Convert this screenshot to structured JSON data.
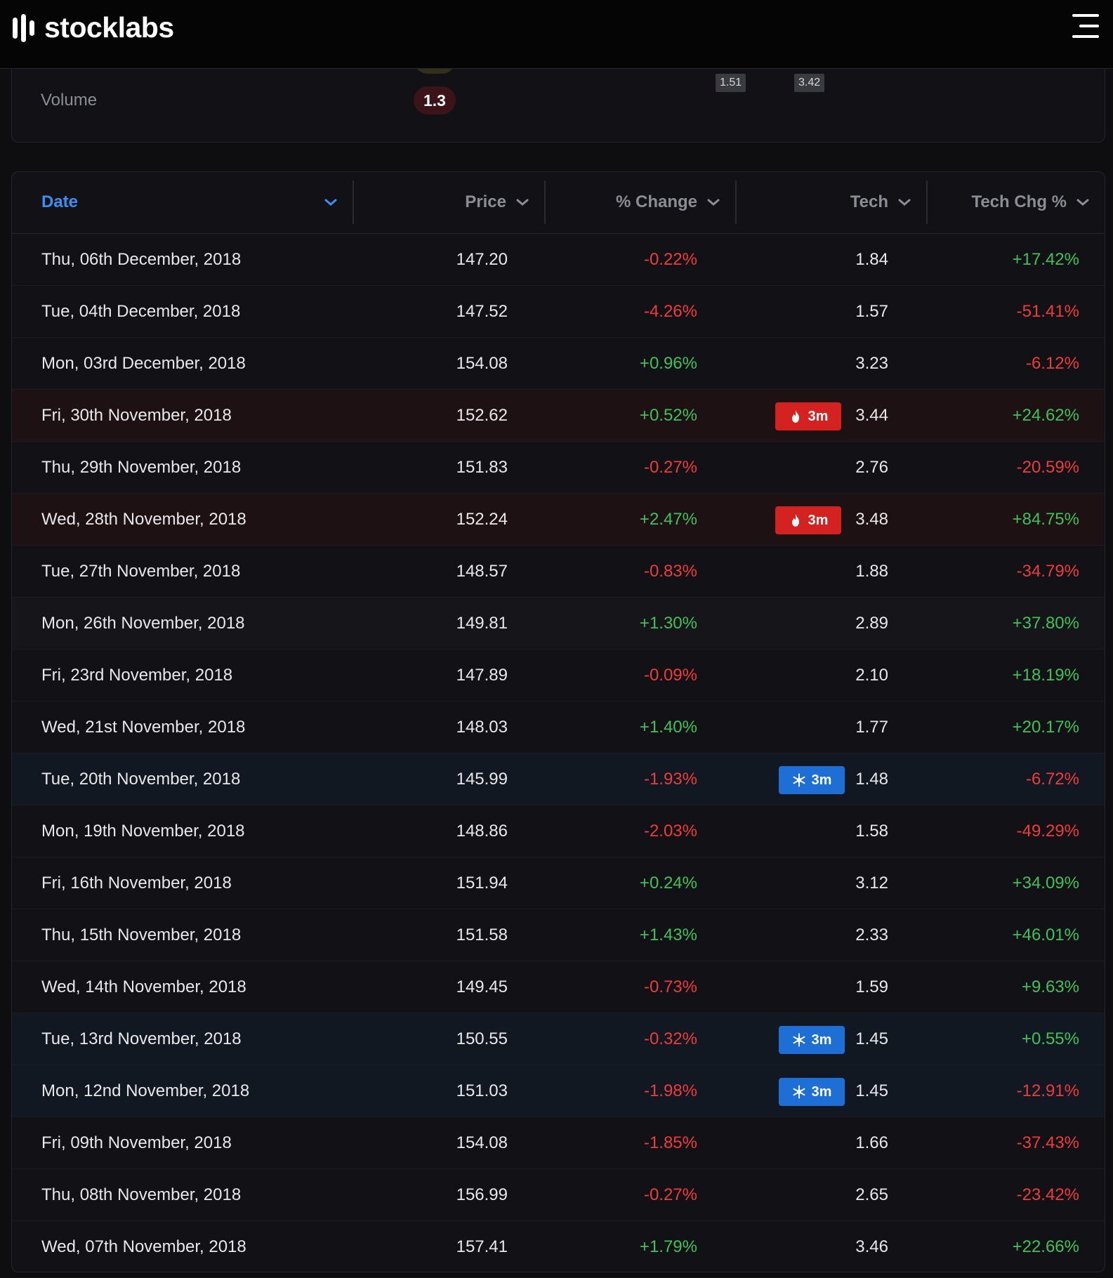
{
  "header": {
    "logo_text": "stocklabs"
  },
  "summary": {
    "volume_label": "Volume",
    "volume_value": "1.3",
    "ticks": [
      "1.51",
      "3.42"
    ]
  },
  "table": {
    "columns": {
      "date": "Date",
      "price": "Price",
      "change": "% Change",
      "tech": "Tech",
      "tech_chg": "Tech Chg %"
    },
    "rows": [
      {
        "date": "Thu, 06th December, 2018",
        "price": "147.20",
        "change": "-0.22%",
        "tech": "1.84",
        "tech_chg": "+17.42%",
        "badge": ""
      },
      {
        "date": "Tue, 04th December, 2018",
        "price": "147.52",
        "change": "-4.26%",
        "tech": "1.57",
        "tech_chg": "-51.41%",
        "badge": ""
      },
      {
        "date": "Mon, 03rd December, 2018",
        "price": "154.08",
        "change": "+0.96%",
        "tech": "3.23",
        "tech_chg": "-6.12%",
        "badge": ""
      },
      {
        "date": "Fri, 30th November, 2018",
        "price": "152.62",
        "change": "+0.52%",
        "tech": "3.44",
        "tech_chg": "+24.62%",
        "badge": "hot",
        "badge_label": "3m"
      },
      {
        "date": "Thu, 29th November, 2018",
        "price": "151.83",
        "change": "-0.27%",
        "tech": "2.76",
        "tech_chg": "-20.59%",
        "badge": ""
      },
      {
        "date": "Wed, 28th November, 2018",
        "price": "152.24",
        "change": "+2.47%",
        "tech": "3.48",
        "tech_chg": "+84.75%",
        "badge": "hot",
        "badge_label": "3m"
      },
      {
        "date": "Tue, 27th November, 2018",
        "price": "148.57",
        "change": "-0.83%",
        "tech": "1.88",
        "tech_chg": "-34.79%",
        "badge": ""
      },
      {
        "date": "Mon, 26th November, 2018",
        "price": "149.81",
        "change": "+1.30%",
        "tech": "2.89",
        "tech_chg": "+37.80%",
        "badge": "",
        "alt": true
      },
      {
        "date": "Fri, 23rd November, 2018",
        "price": "147.89",
        "change": "-0.09%",
        "tech": "2.10",
        "tech_chg": "+18.19%",
        "badge": ""
      },
      {
        "date": "Wed, 21st November, 2018",
        "price": "148.03",
        "change": "+1.40%",
        "tech": "1.77",
        "tech_chg": "+20.17%",
        "badge": ""
      },
      {
        "date": "Tue, 20th November, 2018",
        "price": "145.99",
        "change": "-1.93%",
        "tech": "1.48",
        "tech_chg": "-6.72%",
        "badge": "cold",
        "badge_label": "3m"
      },
      {
        "date": "Mon, 19th November, 2018",
        "price": "148.86",
        "change": "-2.03%",
        "tech": "1.58",
        "tech_chg": "-49.29%",
        "badge": ""
      },
      {
        "date": "Fri, 16th November, 2018",
        "price": "151.94",
        "change": "+0.24%",
        "tech": "3.12",
        "tech_chg": "+34.09%",
        "badge": ""
      },
      {
        "date": "Thu, 15th November, 2018",
        "price": "151.58",
        "change": "+1.43%",
        "tech": "2.33",
        "tech_chg": "+46.01%",
        "badge": ""
      },
      {
        "date": "Wed, 14th November, 2018",
        "price": "149.45",
        "change": "-0.73%",
        "tech": "1.59",
        "tech_chg": "+9.63%",
        "badge": ""
      },
      {
        "date": "Tue, 13rd November, 2018",
        "price": "150.55",
        "change": "-0.32%",
        "tech": "1.45",
        "tech_chg": "+0.55%",
        "badge": "cold",
        "badge_label": "3m"
      },
      {
        "date": "Mon, 12nd November, 2018",
        "price": "151.03",
        "change": "-1.98%",
        "tech": "1.45",
        "tech_chg": "-12.91%",
        "badge": "cold",
        "badge_label": "3m"
      },
      {
        "date": "Fri, 09th November, 2018",
        "price": "154.08",
        "change": "-1.85%",
        "tech": "1.66",
        "tech_chg": "-37.43%",
        "badge": ""
      },
      {
        "date": "Thu, 08th November, 2018",
        "price": "156.99",
        "change": "-0.27%",
        "tech": "2.65",
        "tech_chg": "-23.42%",
        "badge": ""
      },
      {
        "date": "Wed, 07th November, 2018",
        "price": "157.41",
        "change": "+1.79%",
        "tech": "3.46",
        "tech_chg": "+22.66%",
        "badge": ""
      }
    ]
  },
  "colors": {
    "positive": "#3fc15a",
    "negative": "#ee3b3b",
    "accent": "#3b8ff0",
    "hot_badge": "#d3221f",
    "cold_badge": "#1d6fd6"
  },
  "icons": {
    "hot": "flame-icon",
    "cold": "snowflake-icon",
    "sort": "chevron-down-icon",
    "menu": "hamburger-menu-icon"
  }
}
